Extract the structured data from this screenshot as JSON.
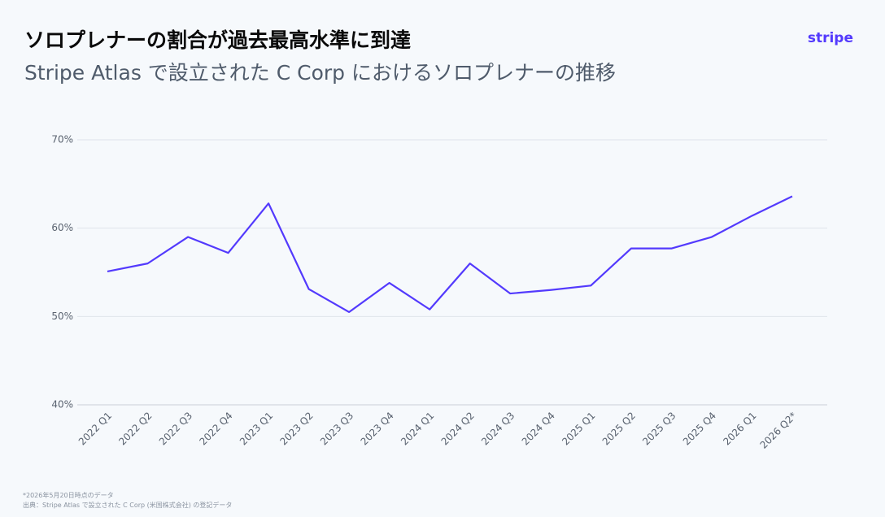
{
  "chart_data": {
    "type": "line",
    "title": "ソロプレナーの割合が過去最高水準に到達",
    "subtitle": "Stripe Atlas で設立された C Corp におけるソロプレナーの推移",
    "logo": "stripe",
    "categories": [
      "2022 Q1",
      "2022 Q2",
      "2022 Q3",
      "2022 Q4",
      "2023 Q1",
      "2023 Q2",
      "2023 Q3",
      "2023 Q4",
      "2024 Q1",
      "2024 Q2",
      "2024 Q3",
      "2024 Q4",
      "2025 Q1",
      "2025 Q2",
      "2025 Q3",
      "2025 Q4",
      "2026 Q1",
      "2026 Q2*"
    ],
    "series": [
      {
        "color": "#533afd",
        "values": [
          55.1,
          56.0,
          59.0,
          57.2,
          62.8,
          53.1,
          50.5,
          53.8,
          50.8,
          56.0,
          52.6,
          53.0,
          53.5,
          57.7,
          57.7,
          59.0,
          61.4,
          63.6
        ]
      }
    ],
    "ylim": [
      40,
      70
    ],
    "yticks": [
      {
        "value": 40,
        "label": "40%"
      },
      {
        "value": 50,
        "label": "50%"
      },
      {
        "value": 60,
        "label": "60%"
      },
      {
        "value": 70,
        "label": "70%"
      }
    ],
    "grid": true,
    "footnotes": [
      "*2026年5月20日時点のデータ",
      "出典：Stripe Atlas で設立された C Corp (米国株式会社) の登記データ"
    ]
  }
}
